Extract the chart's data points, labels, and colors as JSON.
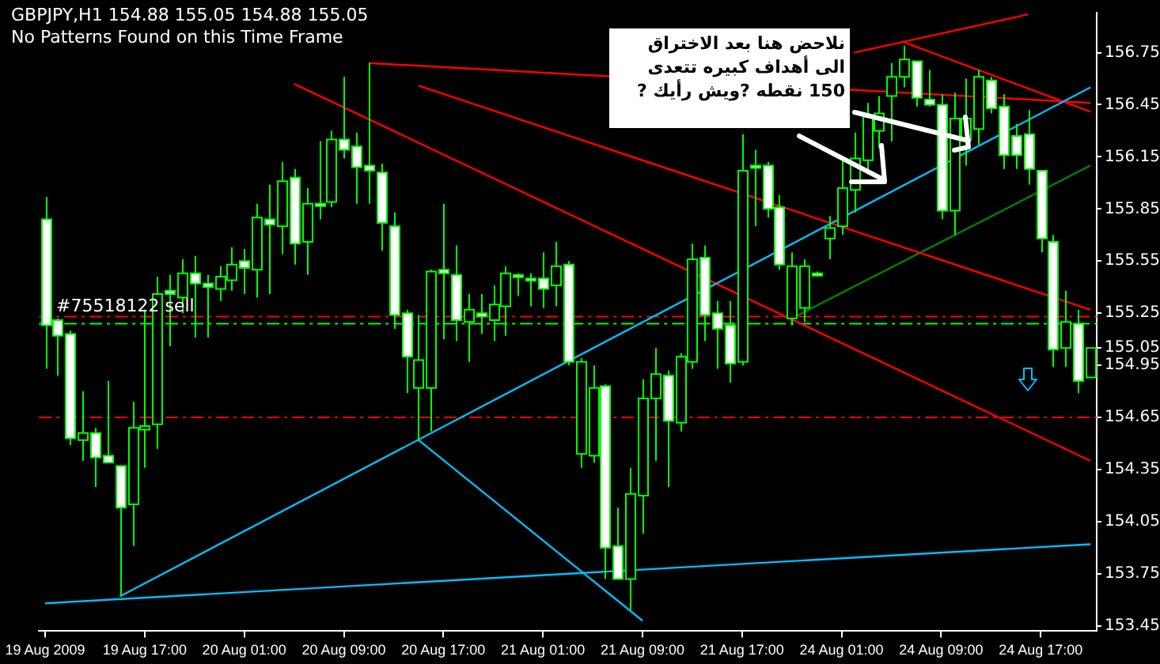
{
  "chart_data": {
    "type": "candlestick",
    "title": "GBPJPY,H1  154.88 155.05 154.88 155.05",
    "subtitle": "No Patterns Found on this Time Frame",
    "annotations": [
      {
        "text": "#75518122 sell",
        "y": 155.19
      },
      {
        "text": "نلاحض هنا بعد الاختراق الى أهداف كبيره تتعدى 150 نقطه ?ويش رأيك ?",
        "y": 156.28
      }
    ],
    "categories": [
      "19 Aug 2009",
      null,
      null,
      null,
      null,
      null,
      null,
      null,
      "19 Aug 17:00",
      null,
      null,
      null,
      null,
      null,
      null,
      null,
      "20 Aug 01:00",
      null,
      null,
      null,
      null,
      null,
      null,
      null,
      "20 Aug 09:00",
      null,
      null,
      null,
      null,
      null,
      null,
      null,
      "20 Aug 17:00",
      null,
      null,
      null,
      null,
      null,
      null,
      null,
      "21 Aug 01:00",
      null,
      null,
      null,
      null,
      null,
      null,
      null,
      "21 Aug 09:00",
      null,
      null,
      null,
      null,
      null,
      null,
      null,
      "21 Aug 17:00",
      null,
      null,
      null,
      null,
      null,
      null,
      null,
      "24 Aug 01:00",
      null,
      null,
      null,
      null,
      null,
      null,
      null,
      "24 Aug 09:00",
      null,
      null,
      null,
      null,
      null,
      null,
      null,
      "24 Aug 17:00",
      null,
      null,
      null,
      null
    ],
    "ohlc": [
      [
        155.79,
        155.92,
        154.93,
        155.18
      ],
      [
        155.21,
        155.22,
        154.89,
        155.12
      ],
      [
        155.13,
        155.15,
        154.49,
        154.53
      ],
      [
        154.52,
        154.8,
        154.4,
        154.56
      ],
      [
        154.56,
        154.59,
        154.25,
        154.42
      ],
      [
        154.43,
        154.86,
        154.39,
        154.39
      ],
      [
        154.37,
        154.37,
        153.62,
        154.13
      ],
      [
        154.15,
        154.74,
        153.91,
        154.59
      ],
      [
        154.58,
        155.27,
        154.36,
        154.6
      ],
      [
        154.61,
        155.46,
        154.47,
        155.36
      ],
      [
        155.38,
        155.47,
        155.06,
        155.36
      ],
      [
        155.34,
        155.56,
        155.25,
        155.48
      ],
      [
        155.48,
        155.58,
        155.11,
        155.42
      ],
      [
        155.42,
        155.47,
        155.11,
        155.4
      ],
      [
        155.39,
        155.52,
        155.32,
        155.46
      ],
      [
        155.44,
        155.63,
        155.38,
        155.53
      ],
      [
        155.55,
        155.62,
        155.36,
        155.51
      ],
      [
        155.5,
        155.88,
        155.34,
        155.8
      ],
      [
        155.79,
        155.99,
        155.36,
        155.76
      ],
      [
        155.75,
        156.12,
        155.59,
        156.01
      ],
      [
        156.03,
        156.08,
        155.53,
        155.65
      ],
      [
        155.66,
        155.97,
        155.47,
        155.88
      ],
      [
        155.88,
        156.24,
        155.79,
        155.87
      ],
      [
        155.89,
        156.3,
        155.86,
        156.25
      ],
      [
        156.25,
        156.61,
        156.14,
        156.19
      ],
      [
        156.21,
        156.29,
        155.88,
        156.09
      ],
      [
        156.1,
        156.69,
        155.88,
        156.07
      ],
      [
        156.06,
        156.11,
        155.61,
        155.77
      ],
      [
        155.75,
        155.83,
        155.16,
        155.24
      ],
      [
        155.25,
        155.27,
        154.79,
        155.0
      ],
      [
        154.82,
        155.24,
        154.52,
        154.98
      ],
      [
        154.82,
        155.5,
        154.57,
        155.49
      ],
      [
        155.5,
        155.88,
        155.1,
        155.48
      ],
      [
        155.47,
        155.64,
        155.09,
        155.21
      ],
      [
        155.2,
        155.36,
        154.97,
        155.27
      ],
      [
        155.25,
        155.36,
        155.13,
        155.23
      ],
      [
        155.21,
        155.41,
        155.09,
        155.3
      ],
      [
        155.29,
        155.52,
        155.12,
        155.48
      ],
      [
        155.47,
        155.48,
        155.35,
        155.46
      ],
      [
        155.45,
        155.48,
        155.29,
        155.44
      ],
      [
        155.45,
        155.6,
        155.28,
        155.39
      ],
      [
        155.41,
        155.66,
        155.29,
        155.52
      ],
      [
        155.53,
        155.55,
        154.95,
        154.97
      ],
      [
        154.44,
        154.99,
        154.36,
        154.97
      ],
      [
        154.43,
        154.95,
        154.39,
        154.82
      ],
      [
        154.83,
        154.84,
        153.72,
        153.9
      ],
      [
        153.91,
        154.13,
        153.72,
        153.72
      ],
      [
        153.72,
        154.36,
        153.54,
        154.21
      ],
      [
        154.2,
        154.87,
        153.98,
        154.76
      ],
      [
        154.76,
        155.05,
        154.4,
        154.9
      ],
      [
        154.89,
        154.92,
        154.25,
        154.63
      ],
      [
        154.62,
        155.02,
        154.57,
        155.0
      ],
      [
        154.97,
        155.65,
        154.93,
        155.56
      ],
      [
        155.57,
        155.64,
        155.09,
        155.24
      ],
      [
        155.25,
        155.32,
        154.93,
        155.16
      ],
      [
        155.18,
        155.32,
        154.85,
        154.96
      ],
      [
        154.97,
        156.28,
        154.95,
        156.07
      ],
      [
        156.1,
        156.19,
        155.75,
        156.09
      ],
      [
        156.1,
        156.12,
        155.8,
        155.85
      ],
      [
        155.86,
        155.93,
        155.5,
        155.53
      ],
      [
        155.22,
        155.6,
        155.18,
        155.52
      ],
      [
        155.28,
        155.56,
        155.2,
        155.52
      ],
      [
        155.48,
        155.49,
        155.46,
        155.47
      ],
      [
        155.68,
        155.81,
        155.56,
        155.74
      ],
      [
        155.75,
        156.15,
        155.7,
        155.97
      ],
      [
        155.96,
        156.29,
        155.83,
        156.14
      ],
      [
        156.13,
        156.46,
        156.05,
        156.38
      ],
      [
        156.3,
        156.5,
        156.2,
        156.4
      ],
      [
        156.5,
        156.69,
        156.24,
        156.61
      ],
      [
        156.61,
        156.79,
        156.55,
        156.71
      ],
      [
        156.7,
        156.7,
        156.44,
        156.49
      ],
      [
        156.48,
        156.65,
        156.44,
        156.45
      ],
      [
        156.45,
        156.51,
        155.79,
        155.84
      ],
      [
        155.84,
        156.52,
        155.7,
        156.37
      ],
      [
        156.25,
        156.6,
        156.1,
        156.37
      ],
      [
        156.31,
        156.65,
        156.22,
        156.61
      ],
      [
        156.59,
        156.61,
        156.4,
        156.43
      ],
      [
        156.44,
        156.51,
        156.08,
        156.16
      ],
      [
        156.27,
        156.34,
        156.08,
        156.16
      ],
      [
        156.28,
        156.42,
        155.99,
        156.08
      ],
      [
        156.07,
        156.07,
        155.6,
        155.68
      ],
      [
        155.66,
        155.7,
        154.94,
        155.04
      ],
      [
        155.05,
        155.38,
        154.94,
        155.2
      ],
      [
        155.19,
        155.27,
        154.79,
        154.86
      ],
      [
        154.88,
        155.05,
        154.88,
        155.05
      ]
    ],
    "series": [
      {
        "type": "line",
        "color": "#00bfff",
        "values": [
          null,
          null,
          null,
          null,
          null,
          null,
          153.62,
          null,
          null,
          null,
          null,
          null,
          null,
          null,
          null,
          null,
          null,
          null,
          null,
          null,
          null,
          null,
          null,
          null,
          null,
          null,
          null,
          null,
          null,
          null,
          null,
          null,
          null,
          null,
          null,
          null,
          null,
          null,
          null,
          null,
          null,
          null,
          null,
          null,
          null,
          null,
          null,
          null,
          null,
          null,
          null,
          null,
          null,
          null,
          null,
          null,
          null,
          null,
          null,
          null,
          null,
          null,
          null,
          null,
          null,
          null,
          null,
          null,
          null,
          null,
          null,
          null,
          null,
          null,
          null,
          null,
          null,
          null,
          null,
          null,
          null,
          null,
          null,
          null,
          156.55
        ]
      },
      {
        "type": "line",
        "color": "#00bfff",
        "values": [
          null,
          null,
          null,
          null,
          null,
          null,
          null,
          null,
          null,
          null,
          null,
          null,
          null,
          null,
          null,
          null,
          null,
          null,
          null,
          null,
          null,
          null,
          null,
          null,
          null,
          null,
          null,
          null,
          null,
          null,
          154.52,
          null,
          null,
          null,
          null,
          null,
          null,
          null,
          null,
          null,
          null,
          null,
          null,
          null,
          null,
          null,
          null,
          null,
          153.48,
          null,
          null,
          null,
          null,
          null,
          null,
          null,
          null,
          null,
          null,
          null,
          null,
          null,
          null,
          null,
          null,
          null,
          null,
          null,
          null,
          null,
          null,
          null,
          null,
          null,
          null,
          null,
          null,
          null,
          null,
          null,
          null,
          null,
          null,
          null,
          null
        ]
      },
      {
        "type": "line",
        "color": "#00bfff",
        "values": [
          153.58,
          null,
          null,
          null,
          null,
          null,
          null,
          null,
          null,
          null,
          null,
          null,
          null,
          null,
          null,
          null,
          null,
          null,
          null,
          null,
          null,
          null,
          null,
          null,
          null,
          null,
          null,
          null,
          null,
          null,
          null,
          null,
          null,
          null,
          null,
          null,
          null,
          null,
          null,
          null,
          null,
          null,
          null,
          null,
          null,
          null,
          null,
          null,
          null,
          null,
          null,
          null,
          null,
          null,
          null,
          null,
          null,
          null,
          null,
          null,
          null,
          null,
          null,
          null,
          null,
          null,
          null,
          null,
          null,
          null,
          null,
          null,
          null,
          null,
          null,
          null,
          null,
          null,
          null,
          null,
          null,
          null,
          null,
          null,
          153.92
        ]
      },
      {
        "type": "line",
        "color": "#ff0000",
        "values": [
          null,
          null,
          null,
          null,
          null,
          null,
          null,
          null,
          null,
          null,
          null,
          null,
          null,
          null,
          null,
          null,
          null,
          null,
          null,
          null,
          null,
          null,
          null,
          null,
          null,
          null,
          156.69,
          null,
          null,
          null,
          null,
          null,
          null,
          null,
          null,
          null,
          null,
          null,
          null,
          null,
          null,
          null,
          null,
          null,
          null,
          null,
          null,
          null,
          null,
          null,
          null,
          null,
          null,
          null,
          null,
          null,
          null,
          null,
          null,
          null,
          null,
          null,
          null,
          null,
          null,
          null,
          null,
          null,
          null,
          null,
          null,
          null,
          null,
          null,
          null,
          null,
          null,
          null,
          null,
          null,
          null,
          null,
          null,
          null,
          156.46
        ]
      },
      {
        "type": "line",
        "color": "#ff0000",
        "values": [
          null,
          null,
          null,
          null,
          null,
          null,
          null,
          null,
          null,
          null,
          null,
          null,
          null,
          null,
          null,
          null,
          null,
          null,
          null,
          null,
          null,
          null,
          null,
          null,
          null,
          null,
          null,
          null,
          null,
          null,
          156.56,
          null,
          null,
          null,
          null,
          null,
          null,
          null,
          null,
          null,
          null,
          null,
          null,
          null,
          null,
          null,
          null,
          null,
          null,
          null,
          null,
          null,
          null,
          null,
          null,
          null,
          null,
          null,
          null,
          null,
          null,
          null,
          null,
          null,
          null,
          null,
          null,
          null,
          null,
          null,
          null,
          null,
          null,
          null,
          null,
          null,
          null,
          null,
          null,
          null,
          null,
          null,
          null,
          null,
          155.27
        ]
      },
      {
        "type": "line",
        "color": "#ff0000",
        "values": [
          null,
          null,
          null,
          null,
          null,
          null,
          null,
          null,
          null,
          null,
          null,
          null,
          null,
          null,
          null,
          null,
          null,
          null,
          null,
          null,
          156.57,
          null,
          null,
          null,
          null,
          null,
          null,
          null,
          null,
          null,
          null,
          null,
          null,
          null,
          null,
          null,
          null,
          null,
          null,
          null,
          null,
          null,
          null,
          null,
          null,
          null,
          null,
          null,
          null,
          null,
          null,
          null,
          null,
          null,
          null,
          null,
          null,
          null,
          null,
          null,
          null,
          null,
          null,
          null,
          null,
          null,
          null,
          null,
          null,
          null,
          null,
          null,
          null,
          null,
          null,
          null,
          null,
          null,
          null,
          null,
          null,
          null,
          null,
          null,
          154.4
        ]
      },
      {
        "type": "line",
        "color": "#ff0000",
        "values": [
          null,
          null,
          null,
          null,
          null,
          null,
          null,
          null,
          null,
          null,
          null,
          null,
          null,
          null,
          null,
          null,
          null,
          null,
          null,
          null,
          null,
          null,
          null,
          null,
          null,
          null,
          null,
          null,
          null,
          null,
          null,
          null,
          null,
          null,
          null,
          null,
          null,
          null,
          null,
          null,
          null,
          null,
          null,
          null,
          null,
          null,
          null,
          null,
          null,
          null,
          null,
          null,
          null,
          null,
          null,
          null,
          null,
          null,
          null,
          null,
          null,
          null,
          null,
          null,
          null,
          null,
          null,
          null,
          null,
          156.81,
          null,
          null,
          null,
          null,
          null,
          null,
          null,
          null,
          null,
          null,
          null,
          null,
          null,
          null,
          156.41
        ]
      },
      {
        "type": "line",
        "color": "#ff0000",
        "values": [
          null,
          null,
          null,
          null,
          null,
          null,
          null,
          null,
          null,
          null,
          null,
          null,
          null,
          null,
          null,
          null,
          null,
          null,
          null,
          null,
          null,
          null,
          null,
          null,
          null,
          null,
          null,
          null,
          null,
          null,
          null,
          null,
          null,
          null,
          null,
          null,
          null,
          null,
          null,
          null,
          null,
          null,
          null,
          null,
          null,
          null,
          null,
          null,
          null,
          null,
          null,
          null,
          null,
          null,
          null,
          null,
          null,
          null,
          null,
          null,
          null,
          null,
          null,
          null,
          null,
          156.75,
          null,
          null,
          null,
          null,
          null,
          null,
          null,
          null,
          null,
          null,
          null,
          null,
          null,
          156.97,
          null,
          null,
          null,
          null,
          null
        ]
      },
      {
        "type": "line",
        "color": "#008000",
        "values": [
          null,
          null,
          null,
          null,
          null,
          null,
          null,
          null,
          null,
          null,
          null,
          null,
          null,
          null,
          null,
          null,
          null,
          null,
          null,
          null,
          null,
          null,
          null,
          null,
          null,
          null,
          null,
          null,
          null,
          null,
          null,
          null,
          null,
          null,
          null,
          null,
          null,
          null,
          null,
          null,
          null,
          null,
          null,
          null,
          null,
          null,
          null,
          null,
          null,
          null,
          null,
          null,
          null,
          null,
          null,
          null,
          null,
          null,
          null,
          null,
          155.22,
          null,
          null,
          null,
          null,
          null,
          null,
          null,
          null,
          null,
          null,
          null,
          null,
          null,
          null,
          null,
          null,
          null,
          null,
          null,
          null,
          null,
          null,
          null,
          156.1
        ]
      }
    ],
    "ref_lines": [
      {
        "axis": "y",
        "value": 155.23,
        "color": "#ff0000",
        "line_style": "dashed"
      },
      {
        "axis": "y",
        "value": 155.19,
        "color": "#00ff00",
        "line_style": "dashed"
      },
      {
        "axis": "y",
        "value": 154.65,
        "color": "#ff0000",
        "line_style": "dashed"
      }
    ],
    "ylim": [
      153.42,
      156.98
    ],
    "yticks": [
      153.45,
      153.75,
      154.05,
      154.35,
      154.65,
      154.95,
      155.05,
      155.25,
      155.55,
      155.85,
      156.15,
      156.45,
      156.75
    ],
    "legend": false
  }
}
